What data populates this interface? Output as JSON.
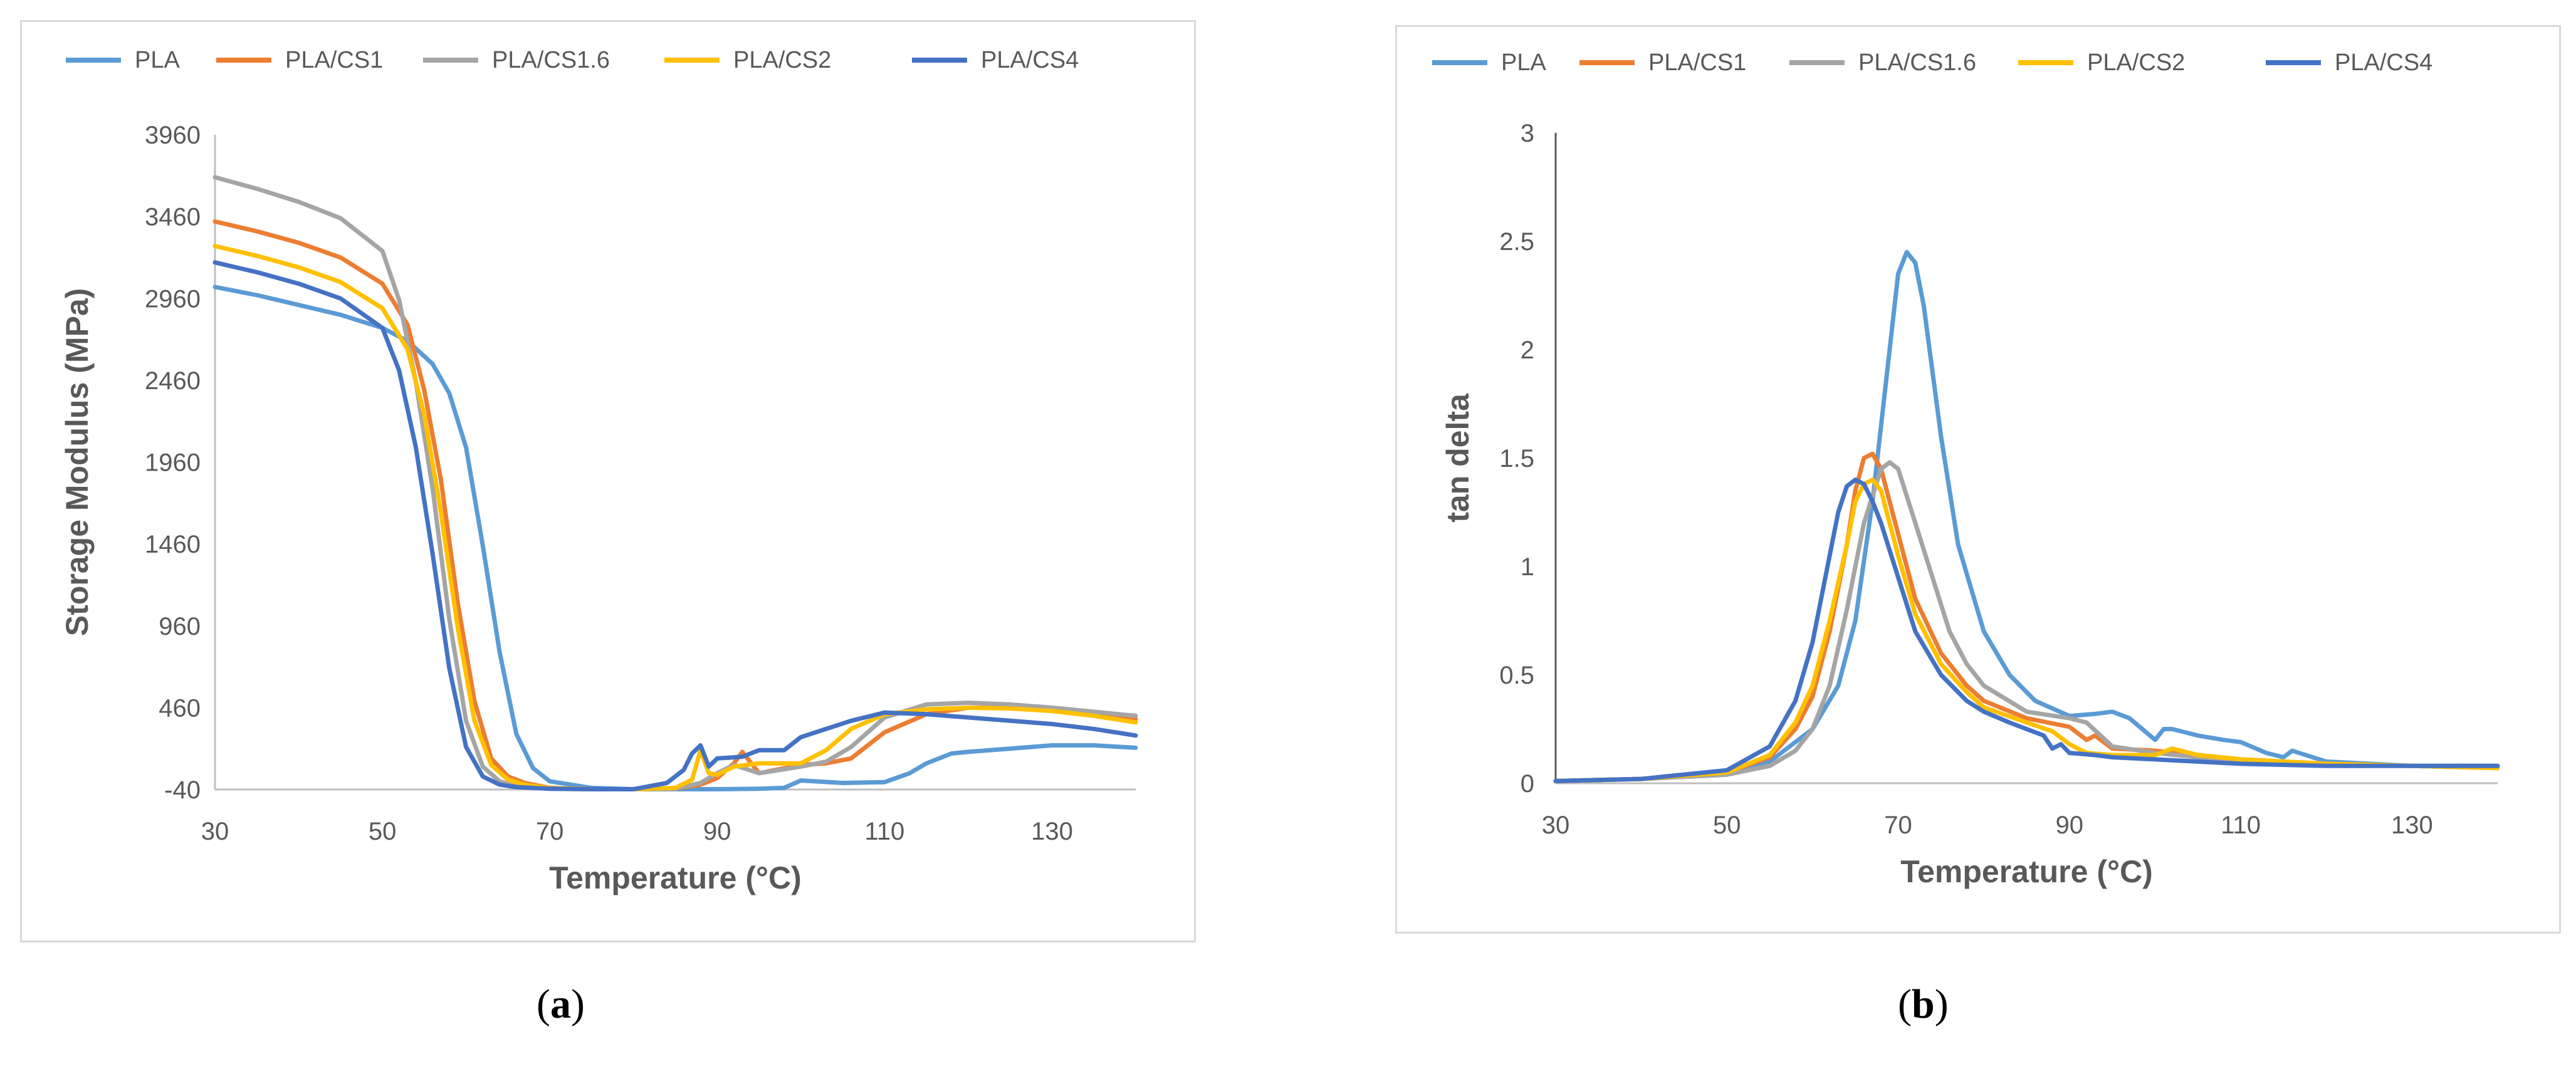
{
  "chart_data": [
    {
      "type": "line",
      "panel_label": "a",
      "title": "",
      "xlabel": "Temperature (°C)",
      "ylabel": "Storage Modulus (MPa)",
      "xlim": [
        30,
        140
      ],
      "ylim": [
        -40,
        3960
      ],
      "xticks": [
        30,
        50,
        70,
        90,
        110,
        130
      ],
      "yticks": [
        -40,
        460,
        960,
        1460,
        1960,
        2460,
        2960,
        3460,
        3960
      ],
      "legend": "top",
      "grid": false,
      "series": [
        {
          "name": "PLA",
          "color": "#5b9bd5",
          "x": [
            30,
            35,
            40,
            45,
            50,
            53,
            56,
            58,
            60,
            62,
            64,
            66,
            68,
            70,
            75,
            80,
            85,
            90,
            95,
            98,
            100,
            105,
            110,
            113,
            115,
            118,
            120,
            125,
            130,
            135,
            140
          ],
          "y": [
            3030,
            2980,
            2920,
            2860,
            2780,
            2700,
            2560,
            2380,
            2050,
            1450,
            800,
            300,
            90,
            10,
            -30,
            -38,
            -38,
            -38,
            -35,
            -30,
            15,
            0,
            5,
            60,
            120,
            180,
            190,
            210,
            230,
            230,
            215
          ]
        },
        {
          "name": "PLA/CS1",
          "color": "#ed7d31",
          "x": [
            30,
            35,
            40,
            45,
            50,
            53,
            55,
            57,
            59,
            61,
            63,
            65,
            67,
            70,
            75,
            80,
            85,
            88,
            90,
            92,
            93,
            95,
            98,
            100,
            103,
            106,
            110,
            115,
            120,
            125,
            130,
            135,
            140
          ],
          "y": [
            3430,
            3370,
            3300,
            3210,
            3050,
            2800,
            2400,
            1850,
            1100,
            500,
            150,
            40,
            0,
            -30,
            -38,
            -38,
            -35,
            -10,
            30,
            120,
            190,
            60,
            90,
            110,
            120,
            150,
            310,
            420,
            460,
            460,
            450,
            420,
            390
          ]
        },
        {
          "name": "PLA/CS1.6",
          "color": "#a5a5a5",
          "x": [
            30,
            35,
            40,
            45,
            50,
            52,
            54,
            56,
            58,
            60,
            62,
            64,
            66,
            70,
            75,
            80,
            85,
            88,
            90,
            92,
            95,
            100,
            103,
            106,
            110,
            115,
            120,
            125,
            130,
            135,
            140
          ],
          "y": [
            3700,
            3630,
            3550,
            3450,
            3250,
            2950,
            2450,
            1800,
            1000,
            380,
            100,
            10,
            -20,
            -35,
            -38,
            -38,
            -35,
            0,
            60,
            110,
            60,
            100,
            130,
            220,
            400,
            480,
            490,
            480,
            460,
            435,
            410
          ]
        },
        {
          "name": "PLA/CS2",
          "color": "#ffc000",
          "x": [
            30,
            35,
            40,
            45,
            50,
            53,
            55,
            57,
            59,
            61,
            63,
            65,
            67,
            70,
            75,
            80,
            85,
            87,
            88,
            89,
            90,
            92,
            95,
            100,
            103,
            106,
            110,
            115,
            120,
            125,
            130,
            135,
            140
          ],
          "y": [
            3280,
            3220,
            3150,
            3060,
            2900,
            2650,
            2250,
            1650,
            950,
            380,
            110,
            20,
            -10,
            -32,
            -38,
            -38,
            -30,
            20,
            200,
            60,
            50,
            100,
            120,
            120,
            200,
            330,
            420,
            450,
            460,
            455,
            440,
            410,
            370
          ]
        },
        {
          "name": "PLA/CS4",
          "color": "#4472c4",
          "x": [
            30,
            35,
            40,
            45,
            50,
            52,
            54,
            56,
            58,
            60,
            62,
            64,
            66,
            70,
            75,
            80,
            84,
            86,
            87,
            88,
            89,
            90,
            93,
            95,
            98,
            100,
            103,
            106,
            110,
            115,
            120,
            125,
            130,
            135,
            140
          ],
          "y": [
            3180,
            3120,
            3050,
            2960,
            2780,
            2520,
            2050,
            1400,
            700,
            220,
            40,
            -10,
            -25,
            -35,
            -38,
            -38,
            0,
            80,
            180,
            230,
            100,
            150,
            160,
            200,
            200,
            280,
            330,
            380,
            430,
            420,
            400,
            380,
            360,
            330,
            290
          ]
        }
      ]
    },
    {
      "type": "line",
      "panel_label": "b",
      "title": "",
      "xlabel": "Temperature (°C)",
      "ylabel": "tan delta",
      "xlim": [
        30,
        140
      ],
      "ylim": [
        0,
        3
      ],
      "xticks": [
        30,
        50,
        70,
        90,
        110,
        130
      ],
      "yticks": [
        0,
        0.5,
        1,
        1.5,
        2,
        2.5,
        3
      ],
      "legend": "top",
      "grid": false,
      "series": [
        {
          "name": "PLA",
          "color": "#5b9bd5",
          "x": [
            30,
            40,
            50,
            55,
            60,
            63,
            65,
            67,
            69,
            70,
            71,
            72,
            73,
            75,
            77,
            80,
            83,
            86,
            90,
            93,
            95,
            97,
            100,
            101,
            102,
            105,
            108,
            110,
            113,
            115,
            116,
            120,
            130,
            140
          ],
          "y": [
            0.01,
            0.02,
            0.04,
            0.1,
            0.25,
            0.45,
            0.75,
            1.3,
            2.0,
            2.35,
            2.45,
            2.4,
            2.2,
            1.6,
            1.1,
            0.7,
            0.5,
            0.38,
            0.31,
            0.32,
            0.33,
            0.3,
            0.2,
            0.25,
            0.25,
            0.22,
            0.2,
            0.19,
            0.14,
            0.12,
            0.15,
            0.1,
            0.08,
            0.07
          ]
        },
        {
          "name": "PLA/CS1",
          "color": "#ed7d31",
          "x": [
            30,
            40,
            50,
            55,
            58,
            60,
            62,
            64,
            65,
            66,
            67,
            68,
            70,
            72,
            75,
            78,
            80,
            85,
            90,
            92,
            93,
            95,
            100,
            105,
            110,
            120,
            130,
            140
          ],
          "y": [
            0.01,
            0.02,
            0.05,
            0.12,
            0.25,
            0.4,
            0.7,
            1.1,
            1.35,
            1.5,
            1.52,
            1.45,
            1.15,
            0.85,
            0.6,
            0.45,
            0.38,
            0.3,
            0.26,
            0.2,
            0.22,
            0.16,
            0.15,
            0.13,
            0.11,
            0.09,
            0.08,
            0.08
          ]
        },
        {
          "name": "PLA/CS1.6",
          "color": "#a5a5a5",
          "x": [
            30,
            40,
            50,
            55,
            58,
            60,
            62,
            64,
            66,
            68,
            69,
            70,
            72,
            74,
            76,
            78,
            80,
            85,
            90,
            92,
            95,
            100,
            105,
            110,
            120,
            130,
            140
          ],
          "y": [
            0.01,
            0.02,
            0.04,
            0.08,
            0.15,
            0.25,
            0.45,
            0.8,
            1.2,
            1.45,
            1.48,
            1.45,
            1.2,
            0.95,
            0.7,
            0.55,
            0.45,
            0.33,
            0.3,
            0.28,
            0.17,
            0.14,
            0.12,
            0.11,
            0.09,
            0.08,
            0.08
          ]
        },
        {
          "name": "PLA/CS2",
          "color": "#ffc000",
          "x": [
            30,
            40,
            50,
            55,
            58,
            60,
            62,
            64,
            65,
            66,
            67,
            68,
            70,
            72,
            75,
            78,
            80,
            85,
            88,
            90,
            92,
            95,
            100,
            102,
            105,
            110,
            120,
            130,
            140
          ],
          "y": [
            0.01,
            0.02,
            0.05,
            0.13,
            0.28,
            0.45,
            0.75,
            1.1,
            1.3,
            1.38,
            1.4,
            1.35,
            1.05,
            0.78,
            0.55,
            0.42,
            0.35,
            0.28,
            0.24,
            0.18,
            0.14,
            0.13,
            0.13,
            0.16,
            0.13,
            0.11,
            0.09,
            0.08,
            0.07
          ]
        },
        {
          "name": "PLA/CS4",
          "color": "#4472c4",
          "x": [
            30,
            40,
            50,
            55,
            58,
            60,
            62,
            63,
            64,
            65,
            66,
            67,
            68,
            70,
            72,
            75,
            78,
            80,
            83,
            85,
            87,
            88,
            89,
            90,
            93,
            95,
            100,
            110,
            120,
            130,
            140
          ],
          "y": [
            0.01,
            0.02,
            0.06,
            0.17,
            0.38,
            0.65,
            1.05,
            1.25,
            1.37,
            1.4,
            1.38,
            1.3,
            1.2,
            0.95,
            0.7,
            0.5,
            0.38,
            0.33,
            0.28,
            0.25,
            0.22,
            0.16,
            0.18,
            0.14,
            0.13,
            0.12,
            0.11,
            0.09,
            0.08,
            0.08,
            0.08
          ]
        }
      ]
    }
  ]
}
